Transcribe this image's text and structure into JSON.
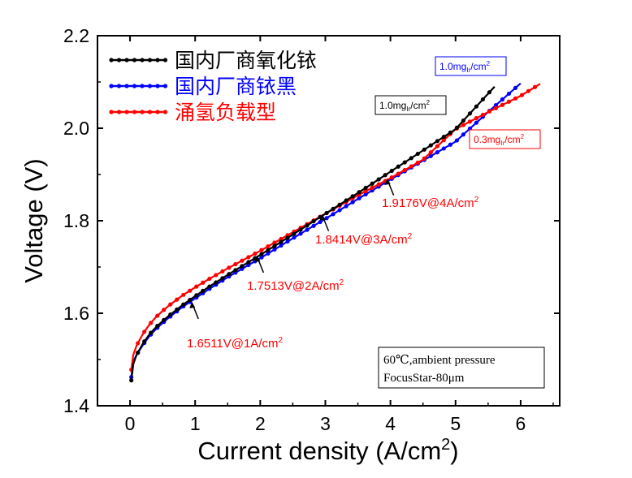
{
  "chart_data": {
    "type": "line",
    "title": "",
    "xlabel": "Current density (A/cm",
    "xlabel_sup": "2",
    "xlabel_end": ")",
    "ylabel": "Voltage (V)",
    "xlim": [
      -0.5,
      6.6
    ],
    "ylim": [
      1.4,
      2.2
    ],
    "x_ticks": [
      0,
      1,
      2,
      3,
      4,
      5,
      6
    ],
    "y_ticks": [
      1.4,
      1.6,
      1.8,
      2.0,
      2.2
    ],
    "x_tick_labels": [
      "0",
      "1",
      "2",
      "3",
      "4",
      "5",
      "6"
    ],
    "y_tick_labels": [
      "1.4",
      "1.6",
      "1.8",
      "2.0",
      "2.2"
    ],
    "legend_position": "top-left",
    "series": [
      {
        "name": "国内厂商氧化铱",
        "color": "#000000",
        "x": [
          0.02,
          0.05,
          0.1,
          0.2,
          0.3,
          0.4,
          0.5,
          0.6,
          0.8,
          1.0,
          1.2,
          1.5,
          2.0,
          2.5,
          3.0,
          3.5,
          4.0,
          4.5,
          5.0,
          5.6
        ],
        "y": [
          1.455,
          1.49,
          1.51,
          1.535,
          1.555,
          1.57,
          1.583,
          1.595,
          1.617,
          1.637,
          1.656,
          1.683,
          1.726,
          1.77,
          1.815,
          1.86,
          1.906,
          1.952,
          1.998,
          2.09
        ]
      },
      {
        "name": "国内厂商铱黑",
        "color": "#0000ff",
        "x": [
          0.02,
          0.05,
          0.1,
          0.2,
          0.3,
          0.4,
          0.5,
          0.6,
          0.8,
          1.0,
          1.2,
          1.5,
          2.0,
          2.5,
          3.0,
          3.5,
          4.0,
          4.5,
          5.0,
          5.5,
          6.0
        ],
        "y": [
          1.462,
          1.495,
          1.51,
          1.532,
          1.551,
          1.566,
          1.579,
          1.591,
          1.613,
          1.632,
          1.651,
          1.678,
          1.719,
          1.762,
          1.804,
          1.847,
          1.889,
          1.93,
          1.971,
          2.035,
          2.097
        ]
      },
      {
        "name": "涌氢负载型",
        "color": "#ff0000",
        "x": [
          0.02,
          0.05,
          0.1,
          0.2,
          0.3,
          0.4,
          0.5,
          0.6,
          0.8,
          1.0,
          1.2,
          1.5,
          2.0,
          2.5,
          3.0,
          3.5,
          4.0,
          4.5,
          5.0,
          5.5,
          6.0,
          6.3
        ],
        "y": [
          1.478,
          1.51,
          1.53,
          1.556,
          1.576,
          1.592,
          1.605,
          1.617,
          1.638,
          1.656,
          1.673,
          1.697,
          1.735,
          1.775,
          1.815,
          1.855,
          1.892,
          1.932,
          1.998,
          2.035,
          2.07,
          2.096
        ]
      }
    ],
    "annotations": [
      {
        "text": "1.6511V@1A/cm",
        "sup": "2",
        "x": 1.0,
        "y": 1.651
      },
      {
        "text": "1.7513V@2A/cm",
        "sup": "2",
        "x": 2.0,
        "y": 1.751
      },
      {
        "text": "1.8414V@3A/cm",
        "sup": "2",
        "x": 3.0,
        "y": 1.841
      },
      {
        "text": "1.9176V@4A/cm",
        "sup": "2",
        "x": 4.0,
        "y": 1.918
      }
    ],
    "loading_labels": [
      {
        "main": "1.0mg",
        "sub": "Ir",
        "end": "/cm",
        "sup": "2",
        "color": "#0000ff"
      },
      {
        "main": "1.0mg",
        "sub": "Ir",
        "end": "/cm",
        "sup": "2",
        "color": "#000000"
      },
      {
        "main": "0.3mg",
        "sub": "Ir",
        "end": "/cm",
        "sup": "2",
        "color": "#ff0000"
      }
    ],
    "conditions": [
      "60℃,ambient pressure",
      "FocusStar-80μm"
    ],
    "grid": false
  }
}
